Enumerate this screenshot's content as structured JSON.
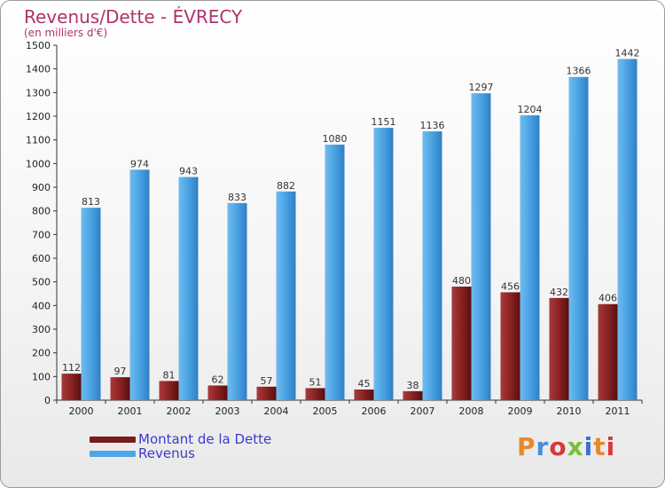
{
  "header": {
    "title": "Revenus/Dette - ÉVRECY",
    "subtitle": "(en milliers d'€)"
  },
  "legend": {
    "debt_label": "Montant de la Dette",
    "revenue_label": "Revenus"
  },
  "logo": {
    "text": "Proxiti"
  },
  "colors": {
    "debt": "#7a1b1b",
    "revenue": "#4da6e6",
    "title": "#b0336b",
    "legend_text": "#3b3bcc"
  },
  "chart_data": {
    "type": "bar",
    "title": "Revenus/Dette - ÉVRECY",
    "subtitle": "(en milliers d'€)",
    "categories": [
      "2000",
      "2001",
      "2002",
      "2003",
      "2004",
      "2005",
      "2006",
      "2007",
      "2008",
      "2009",
      "2010",
      "2011"
    ],
    "series": [
      {
        "name": "Montant de la Dette",
        "values": [
          112,
          97,
          81,
          62,
          57,
          51,
          45,
          38,
          480,
          456,
          432,
          406
        ]
      },
      {
        "name": "Revenus",
        "values": [
          813,
          974,
          943,
          833,
          882,
          1080,
          1151,
          1136,
          1297,
          1204,
          1366,
          1442
        ]
      }
    ],
    "ylim": [
      0,
      1500
    ],
    "yticks": [
      0,
      100,
      200,
      300,
      400,
      500,
      600,
      700,
      800,
      900,
      1000,
      1100,
      1200,
      1300,
      1400,
      1500
    ],
    "grid": false,
    "legend_position": "bottom-left"
  }
}
